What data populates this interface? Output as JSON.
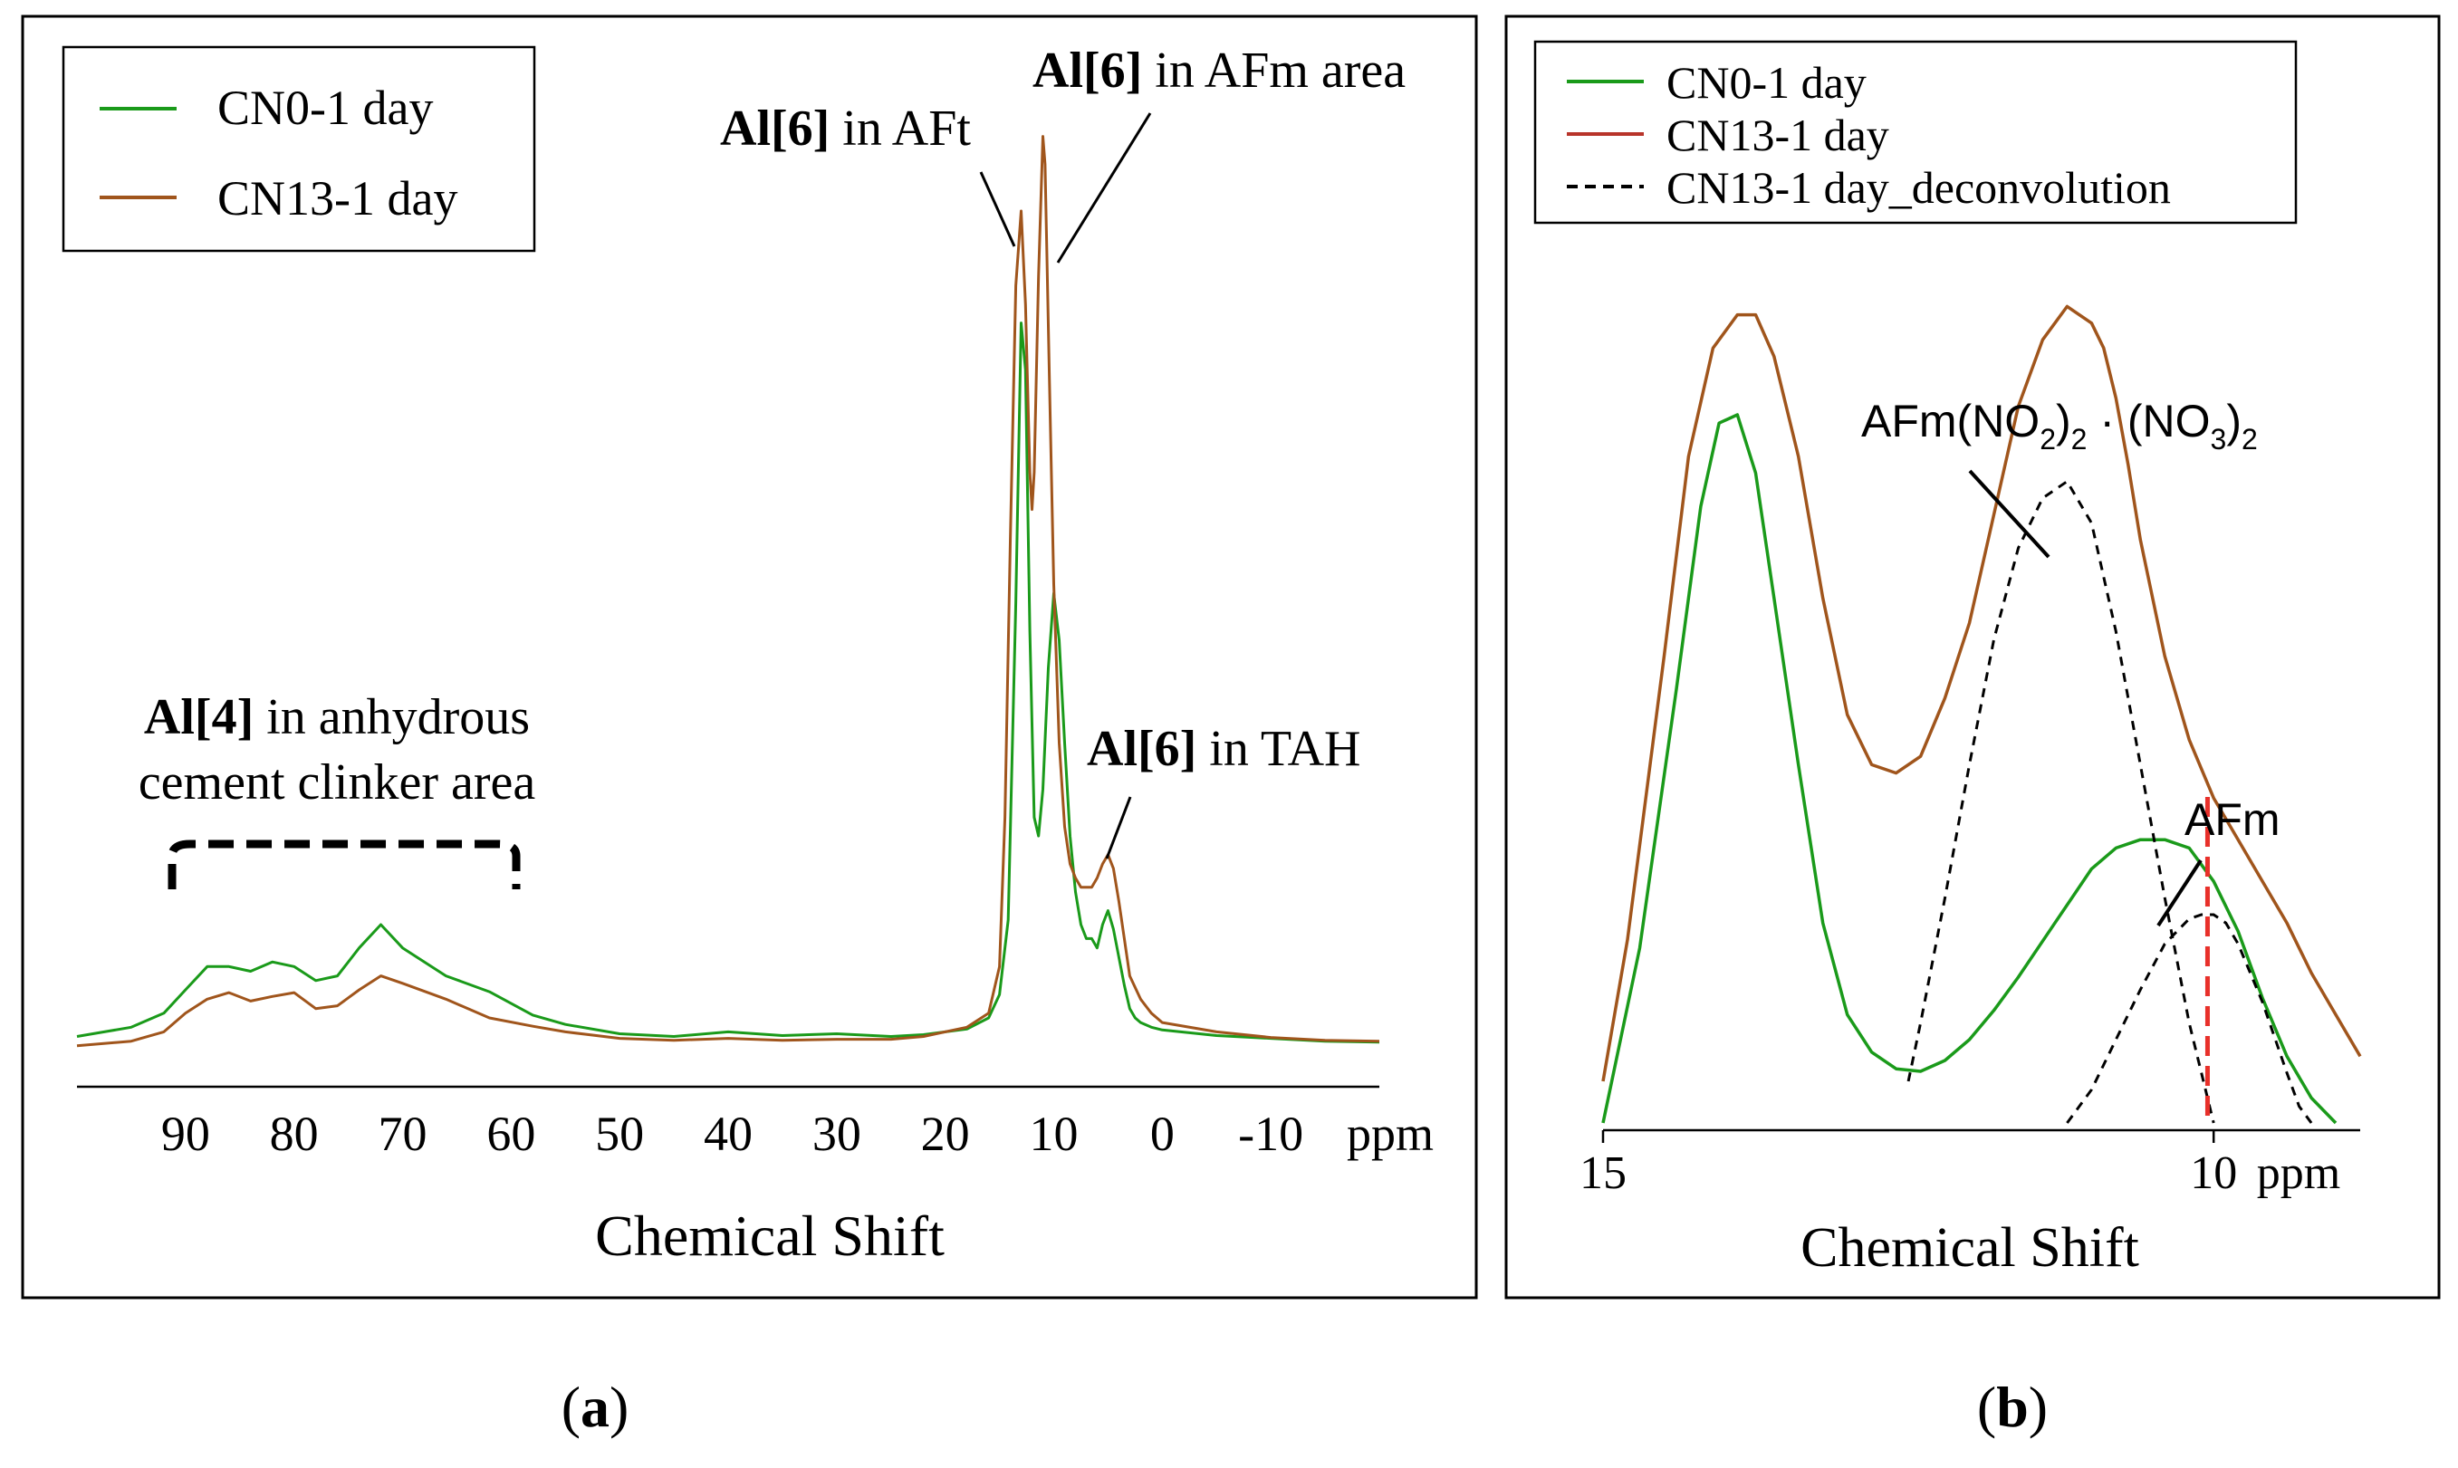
{
  "colors": {
    "green": "#1a9a1a",
    "brown": "#a0551c",
    "legend_red": "#b8342a",
    "red_marker": "#e8302a",
    "black": "#000000"
  },
  "panel_labels": {
    "a": "a",
    "b": "b"
  },
  "chart_data": [
    {
      "id": "a",
      "type": "line",
      "title": "",
      "xlabel": "Chemical Shift",
      "unit": "ppm",
      "xlim": [
        100,
        -20
      ],
      "xticks": [
        90,
        80,
        70,
        60,
        50,
        40,
        30,
        20,
        10,
        0,
        -10
      ],
      "xtick_labels": [
        "90",
        "80",
        "70",
        "60",
        "50",
        "40",
        "30",
        "20",
        "10",
        "0",
        "-10"
      ],
      "ylabel": "",
      "ylim": [
        0,
        100
      ],
      "legend": {
        "position": "top-left",
        "entries": [
          "CN0-1 day",
          "CN13-1 day"
        ]
      },
      "series": [
        {
          "name": "CN0-1 day",
          "color": "green",
          "style": "solid",
          "x": [
            100,
            95,
            92,
            90,
            88,
            86,
            84,
            82,
            80,
            78,
            76,
            74,
            72,
            70,
            66,
            62,
            58,
            55,
            50,
            45,
            40,
            35,
            30,
            25,
            22,
            20,
            18,
            16,
            15,
            14.2,
            13.5,
            13,
            12.6,
            12.2,
            11.8,
            11.4,
            11,
            10.5,
            10,
            9.5,
            9,
            8.5,
            8,
            7.5,
            7,
            6.5,
            6,
            5.5,
            5,
            4.5,
            4,
            3.5,
            3,
            2.5,
            2,
            1,
            0,
            -5,
            -10,
            -15,
            -20
          ],
          "y": [
            1.5,
            2.5,
            4,
            6.5,
            9,
            9,
            8.5,
            9.5,
            9,
            7.5,
            8,
            11,
            13.5,
            11,
            8,
            6.3,
            3.8,
            2.8,
            1.8,
            1.5,
            2,
            1.6,
            1.8,
            1.5,
            1.7,
            2,
            2.3,
            3.5,
            6,
            14,
            48,
            78,
            73,
            45,
            25,
            23,
            28,
            41,
            49,
            44,
            33,
            23,
            17,
            13.5,
            12,
            12,
            11,
            13.5,
            15,
            13,
            10,
            7,
            4.5,
            3.5,
            3,
            2.5,
            2.2,
            1.6,
            1.3,
            1,
            0.9
          ]
        },
        {
          "name": "CN13-1 day",
          "color": "brown",
          "style": "solid",
          "x": [
            100,
            95,
            92,
            90,
            88,
            86,
            84,
            82,
            80,
            78,
            76,
            74,
            72,
            70,
            66,
            62,
            58,
            55,
            50,
            45,
            40,
            35,
            30,
            25,
            22,
            20,
            18,
            16,
            15,
            14.5,
            14,
            13.5,
            13,
            12.6,
            12.2,
            12,
            11.8,
            11.4,
            11,
            10.8,
            10.4,
            10,
            9.5,
            9,
            8.5,
            8,
            7.5,
            7,
            6.5,
            6,
            5.5,
            5,
            4.5,
            4,
            3.5,
            3,
            2,
            1,
            0,
            -5,
            -10,
            -15,
            -20
          ],
          "y": [
            0.5,
            1,
            2,
            4,
            5.5,
            6.2,
            5.3,
            5.8,
            6.2,
            4.5,
            4.8,
            6.5,
            8,
            7.2,
            5.5,
            3.5,
            2.6,
            2,
            1.3,
            1.1,
            1.3,
            1.1,
            1.2,
            1.2,
            1.5,
            2,
            2.5,
            4,
            9,
            25,
            55,
            82,
            90,
            80,
            62,
            58,
            62,
            83,
            98,
            95,
            72,
            50,
            33,
            24,
            20,
            18.5,
            17.5,
            17.5,
            17.5,
            18.5,
            20,
            21,
            19.5,
            16,
            12,
            8,
            5.5,
            4,
            3,
            2,
            1.4,
            1.1,
            1
          ]
        }
      ],
      "annotations": [
        {
          "bold": "Al[6]",
          "text": " in AFt"
        },
        {
          "bold": "Al[6]",
          "text": " in AFm area"
        },
        {
          "bold": "Al[6]",
          "text": " in TAH"
        },
        {
          "bold": "Al[4]",
          "text": " in anhydrous",
          "line2": "cement clinker area"
        }
      ]
    },
    {
      "id": "b",
      "type": "line",
      "title": "",
      "xlabel": "Chemical Shift",
      "unit": "ppm",
      "xlim": [
        15,
        8.8
      ],
      "xticks": [
        15,
        10
      ],
      "xtick_labels": [
        "15",
        "10"
      ],
      "ylabel": "",
      "ylim": [
        0,
        100
      ],
      "legend": {
        "position": "top-left",
        "entries": [
          "CN0-1 day",
          "CN13-1 day",
          "CN13-1 day_deconvolution"
        ]
      },
      "series": [
        {
          "name": "CN0-1 day",
          "color": "green",
          "style": "solid",
          "x": [
            15,
            14.7,
            14.4,
            14.2,
            14.05,
            13.9,
            13.75,
            13.6,
            13.4,
            13.2,
            13,
            12.8,
            12.6,
            12.4,
            12.2,
            12,
            11.8,
            11.6,
            11.3,
            11,
            10.8,
            10.6,
            10.4,
            10.2,
            10.1,
            10,
            9.8,
            9.6,
            9.4,
            9.2,
            9
          ],
          "y": [
            0,
            21,
            52,
            74,
            84,
            85,
            78,
            63,
            43,
            24,
            13,
            8.5,
            6.5,
            6.2,
            7.5,
            10,
            13.5,
            17.5,
            24,
            30.5,
            33,
            34,
            34,
            33,
            31,
            29,
            23,
            15,
            8,
            3,
            0
          ]
        },
        {
          "name": "CN13-1 day",
          "color": "brown",
          "style": "solid",
          "x": [
            15,
            14.8,
            14.5,
            14.3,
            14.1,
            13.9,
            13.75,
            13.6,
            13.4,
            13.2,
            13,
            12.8,
            12.6,
            12.4,
            12.2,
            12,
            11.8,
            11.6,
            11.4,
            11.2,
            11,
            10.9,
            10.8,
            10.7,
            10.6,
            10.4,
            10.2,
            10,
            9.8,
            9.6,
            9.4,
            9.2,
            9,
            8.8
          ],
          "y": [
            5,
            22,
            56,
            80,
            93,
            97,
            97,
            92,
            80,
            63,
            49,
            43,
            42,
            44,
            51,
            60,
            73,
            86,
            94,
            98,
            96,
            93,
            87,
            79,
            70,
            56,
            46,
            39,
            34,
            29,
            24,
            18,
            13,
            8
          ]
        },
        {
          "name": "AFm(NO2)2·(NO3)2 deconvolution",
          "color": "black",
          "style": "dashed",
          "x": [
            12.5,
            12.4,
            12.2,
            12,
            11.8,
            11.6,
            11.4,
            11.2,
            11,
            10.8,
            10.6,
            10.4,
            10.2,
            10
          ],
          "y": [
            5,
            12,
            27,
            43,
            58,
            69,
            75,
            77,
            72,
            59,
            43,
            27,
            12,
            0
          ]
        },
        {
          "name": "AFm deconvolution",
          "color": "black",
          "style": "dashed",
          "x": [
            11.2,
            11,
            10.8,
            10.6,
            10.4,
            10.2,
            10.1,
            10,
            9.9,
            9.8,
            9.6,
            9.4,
            9.3,
            9.2
          ],
          "y": [
            0,
            4,
            10,
            16,
            21.5,
            24.5,
            25,
            25,
            24,
            21.5,
            14.5,
            6,
            2,
            0
          ]
        }
      ],
      "annotations": [
        {
          "id": "afm-no2-no3",
          "parts": [
            "AFm(NO",
            "2",
            ")",
            "2",
            " · (NO",
            "3",
            ")",
            "2"
          ]
        },
        {
          "id": "afm",
          "text": "AFm"
        }
      ],
      "marker": {
        "x": 10.05,
        "style": "dashed",
        "color": "red_marker"
      }
    }
  ]
}
